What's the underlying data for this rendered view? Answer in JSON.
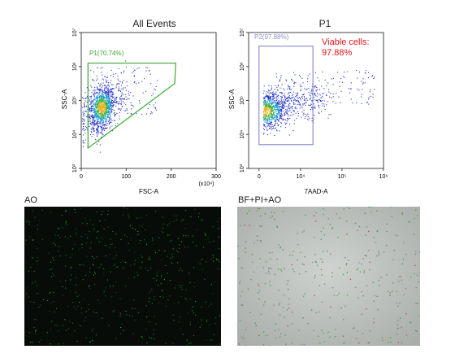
{
  "plots": {
    "left": {
      "title": "All Events",
      "xlabel": "FSC-A",
      "ylabel": "SSC-A",
      "x_unit": "(x10⁴)",
      "x_ticks": [
        "0",
        "100",
        "200",
        "300"
      ],
      "y_ticks": [
        "10³",
        "10⁴",
        "10⁵",
        "10⁶",
        "10⁷"
      ],
      "gate_label": "P1(70.74%)"
    },
    "right": {
      "title": "P1",
      "xlabel": "7AAD-A",
      "ylabel": "SSC-A",
      "x_ticks": [
        "0",
        "10⁴",
        "10⁵",
        "10⁶"
      ],
      "y_ticks": [
        "10³",
        "10⁴",
        "10⁵",
        "10⁶",
        "10⁷"
      ],
      "gate_label": "P2(97.88%)",
      "annotation_line1": "Viable cells:",
      "annotation_line2": "97.88%"
    }
  },
  "images": {
    "ao_title": "AO",
    "merge_title": "BF+PI+AO"
  },
  "colors": {
    "gate_p1": "#3aaa35",
    "gate_p2": "#8f8fd0",
    "annotation": "#e8141b",
    "event_dot": "#2633c9"
  },
  "chart_data": [
    {
      "type": "scatter",
      "title": "All Events",
      "xlabel": "FSC-A",
      "ylabel": "SSC-A",
      "x_unit": "(x10⁴)",
      "xlim": [
        0,
        300
      ],
      "ylim_log10": [
        3,
        7
      ],
      "y_scale": "log",
      "gate": {
        "name": "P1(70.74%)",
        "percent": 70.74,
        "polygon": [
          [
            15,
            6.1
          ],
          [
            210,
            6.1
          ],
          [
            208,
            5.5
          ],
          [
            15,
            3.6
          ]
        ]
      },
      "density_center": {
        "x": 45,
        "y_log10": 4.8
      }
    },
    {
      "type": "scatter",
      "title": "P1",
      "xlabel": "7AAD-A",
      "ylabel": "SSC-A",
      "x_scale": "log",
      "xlim_log10": [
        3,
        6
      ],
      "ylim_log10": [
        3,
        7
      ],
      "y_scale": "log",
      "gate": {
        "name": "P2(97.88%)",
        "percent": 97.88,
        "rect_log10": {
          "x": [
            3.0,
            4.3
          ],
          "y": [
            3.7,
            6.6
          ]
        }
      },
      "annotation": "Viable cells: 97.88%",
      "density_center": {
        "x_log10": 3.1,
        "y_log10": 4.7
      }
    }
  ]
}
